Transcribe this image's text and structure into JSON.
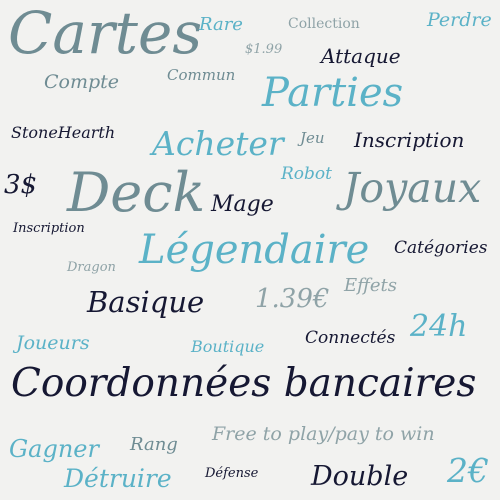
{
  "colors": {
    "background": "#f2f2f0",
    "grey": "#6f8c93",
    "light_grey": "#8fa3a7",
    "teal": "#5bb2c7",
    "dark": "#161833"
  },
  "words": {
    "cartes": "Cartes",
    "rare": "Rare",
    "collection": "Collection",
    "perdre": "Perdre",
    "price_199": "$1.99",
    "attaque": "Attaque",
    "compte": "Compte",
    "commun": "Commun",
    "parties": "Parties",
    "stonehearth": "StoneHearth",
    "acheter": "Acheter",
    "jeu": "Jeu",
    "inscription_1": "Inscription",
    "dollar_3": "3$",
    "robot": "Robot",
    "deck": "Deck",
    "joyaux": "Joyaux",
    "mage": "Mage",
    "inscription_2": "Inscription",
    "legendaire": "Légendaire",
    "categories": "Catégories",
    "dragon": "Dragon",
    "effets": "Effets",
    "basique": "Basique",
    "price_139": "1.39€",
    "joueurs": "Joueurs",
    "boutique": "Boutique",
    "connectes": "Connectés",
    "h24": "24h",
    "coordonnees": "Coordonnées bancaires",
    "free_to_play": "Free to play/pay to win",
    "gagner": "Gagner",
    "rang": "Rang",
    "detruire": "Détruire",
    "defense": "Défense",
    "double": "Double",
    "euro_2": "2€"
  }
}
